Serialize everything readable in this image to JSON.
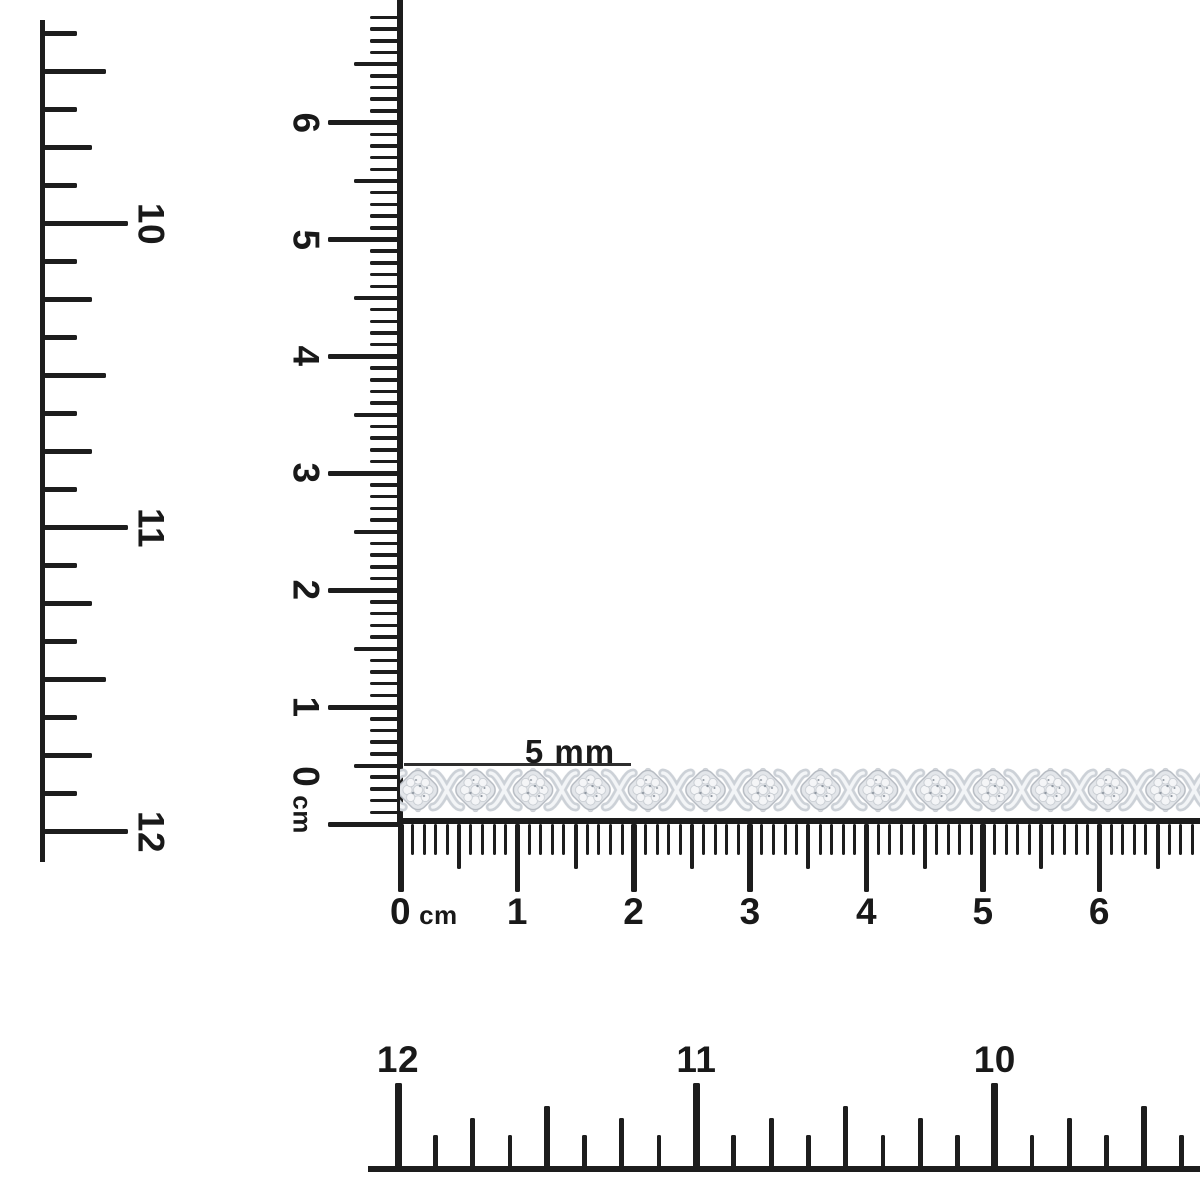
{
  "scene": {
    "description": "White-background scale photo of a diamond X-link tennis bracelet laid along rulers",
    "background_color": "#ffffff",
    "ink_color": "#1d1d1d",
    "metal_base_color": "#e3e6ea",
    "metal_highlight_color": "#f4f6f8",
    "metal_shadow_color": "#b6bbc2"
  },
  "measurement": {
    "width_label": "5 mm"
  },
  "left_inch_ruler": {
    "unit": "inches",
    "labels": [
      "10",
      "11",
      "12"
    ]
  },
  "vertical_cm_ruler": {
    "unit": "cm",
    "labels": [
      "6",
      "5",
      "4",
      "3",
      "2",
      "1"
    ],
    "zero_digit": "0",
    "unit_label": "cm"
  },
  "horizontal_cm_ruler": {
    "unit": "cm",
    "zero_digit": "0",
    "unit_label": "cm",
    "labels": [
      "1",
      "2",
      "3",
      "4",
      "5",
      "6"
    ]
  },
  "bottom_inch_ruler": {
    "unit": "inches",
    "labels": [
      "12",
      "11",
      "10"
    ]
  },
  "bracelet": {
    "type": "diamond x-link tennis bracelet",
    "links_visible": 14
  }
}
